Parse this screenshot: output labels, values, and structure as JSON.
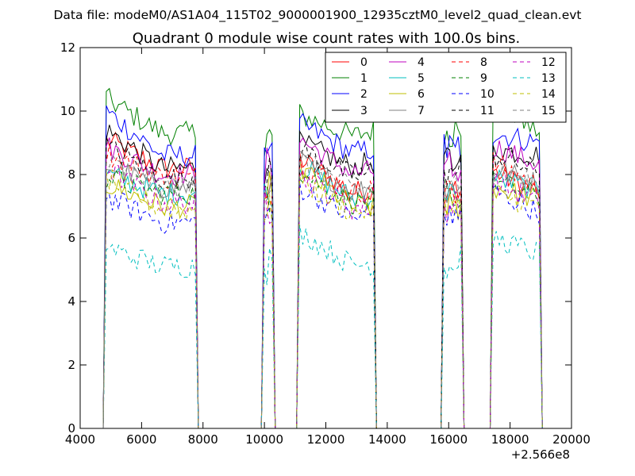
{
  "figure": {
    "suptitle": "Data file: modeM0/AS1A04_115T02_9000001900_12935cztM0_level2_quad_clean.evt"
  },
  "chart_data": {
    "type": "line",
    "title": "Quadrant 0 module wise count rates with 100.0s bins.",
    "xlabel": "",
    "ylabel": "",
    "x_offset_label": "+2.566e8",
    "xlim": [
      4000,
      20000
    ],
    "ylim": [
      0,
      12
    ],
    "xticks": [
      "4000",
      "6000",
      "8000",
      "10000",
      "12000",
      "14000",
      "16000",
      "18000",
      "20000"
    ],
    "yticks": [
      "0",
      "2",
      "4",
      "6",
      "8",
      "10",
      "12"
    ],
    "grid": false,
    "legend_position": "top-right",
    "segments": [
      {
        "start": 4850,
        "end": 7750
      },
      {
        "start": 10000,
        "end": 10250
      },
      {
        "start": 11150,
        "end": 13550
      },
      {
        "start": 15850,
        "end": 16400
      },
      {
        "start": 17450,
        "end": 18950
      }
    ],
    "series": [
      {
        "name": "0",
        "color": "#ff0000",
        "dash": "solid",
        "levels": [
          9.1,
          8.2,
          7.3,
          7.5,
          7.4,
          8.1
        ]
      },
      {
        "name": "1",
        "color": "#008000",
        "dash": "solid",
        "levels": [
          10.4,
          9.3,
          8.7,
          9.4,
          9.3,
          10.3
        ]
      },
      {
        "name": "2",
        "color": "#0000ff",
        "dash": "solid",
        "levels": [
          10.0,
          8.6,
          8.4,
          8.8,
          9.0,
          9.3
        ]
      },
      {
        "name": "3",
        "color": "#000000",
        "dash": "solid",
        "levels": [
          9.4,
          8.2,
          7.8,
          8.4,
          8.6,
          8.8
        ]
      },
      {
        "name": "4",
        "color": "#bf00bf",
        "dash": "solid",
        "levels": [
          8.9,
          8.0,
          7.9,
          8.1,
          8.3,
          8.9
        ]
      },
      {
        "name": "5",
        "color": "#00bfbf",
        "dash": "solid",
        "levels": [
          8.0,
          7.4,
          7.1,
          7.3,
          7.5,
          7.9
        ]
      },
      {
        "name": "6",
        "color": "#bfbf00",
        "dash": "solid",
        "levels": [
          7.7,
          7.0,
          7.0,
          7.0,
          7.2,
          7.6
        ]
      },
      {
        "name": "7",
        "color": "#808080",
        "dash": "solid",
        "levels": [
          8.3,
          7.6,
          7.2,
          7.6,
          7.7,
          8.2
        ]
      },
      {
        "name": "8",
        "color": "#ff0000",
        "dash": "dashed",
        "levels": [
          8.7,
          7.9,
          7.2,
          7.5,
          7.6,
          8.4
        ]
      },
      {
        "name": "9",
        "color": "#008000",
        "dash": "dashed",
        "levels": [
          7.9,
          7.4,
          6.9,
          7.2,
          7.3,
          7.8
        ]
      },
      {
        "name": "10",
        "color": "#0000ff",
        "dash": "dashed",
        "levels": [
          7.3,
          6.5,
          6.4,
          6.7,
          6.8,
          7.5
        ]
      },
      {
        "name": "11",
        "color": "#000000",
        "dash": "dashed",
        "levels": [
          8.9,
          7.9,
          7.6,
          8.1,
          8.1,
          8.6
        ]
      },
      {
        "name": "12",
        "color": "#bf00bf",
        "dash": "dashed",
        "levels": [
          8.2,
          7.1,
          6.8,
          7.0,
          7.1,
          7.8
        ]
      },
      {
        "name": "13",
        "color": "#00bfbf",
        "dash": "dashed",
        "levels": [
          5.7,
          5.1,
          5.0,
          5.2,
          5.5,
          6.0
        ]
      },
      {
        "name": "14",
        "color": "#bfbf00",
        "dash": "dashed",
        "levels": [
          7.9,
          6.9,
          6.6,
          6.9,
          7.0,
          7.4
        ]
      },
      {
        "name": "15",
        "color": "#808080",
        "dash": "dashed",
        "levels": [
          8.4,
          7.6,
          7.3,
          7.6,
          7.7,
          8.2
        ]
      }
    ]
  }
}
